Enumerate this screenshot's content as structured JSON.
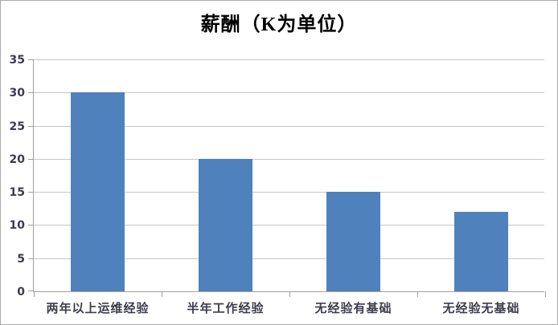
{
  "chart_data": {
    "type": "bar",
    "title": "薪酬（K为单位）",
    "categories": [
      "两年以上运维经验",
      "半年工作经验",
      "无经验有基础",
      "无经验无基础"
    ],
    "values": [
      30,
      20,
      15,
      12
    ],
    "xlabel": "",
    "ylabel": "",
    "ylim": [
      0,
      35
    ],
    "ytick_step": 5,
    "ytick_labels": [
      "0",
      "5",
      "10",
      "15",
      "20",
      "25",
      "30",
      "35"
    ],
    "grid": true,
    "legend": "none",
    "bar_color": "#4f81bd",
    "gridline_color": "#c6c6c6",
    "axis_color": "#a0a0a0",
    "tick_label_color": "#3c3c4e",
    "title_color": "#000000",
    "frame_border_color": "#ababab"
  }
}
